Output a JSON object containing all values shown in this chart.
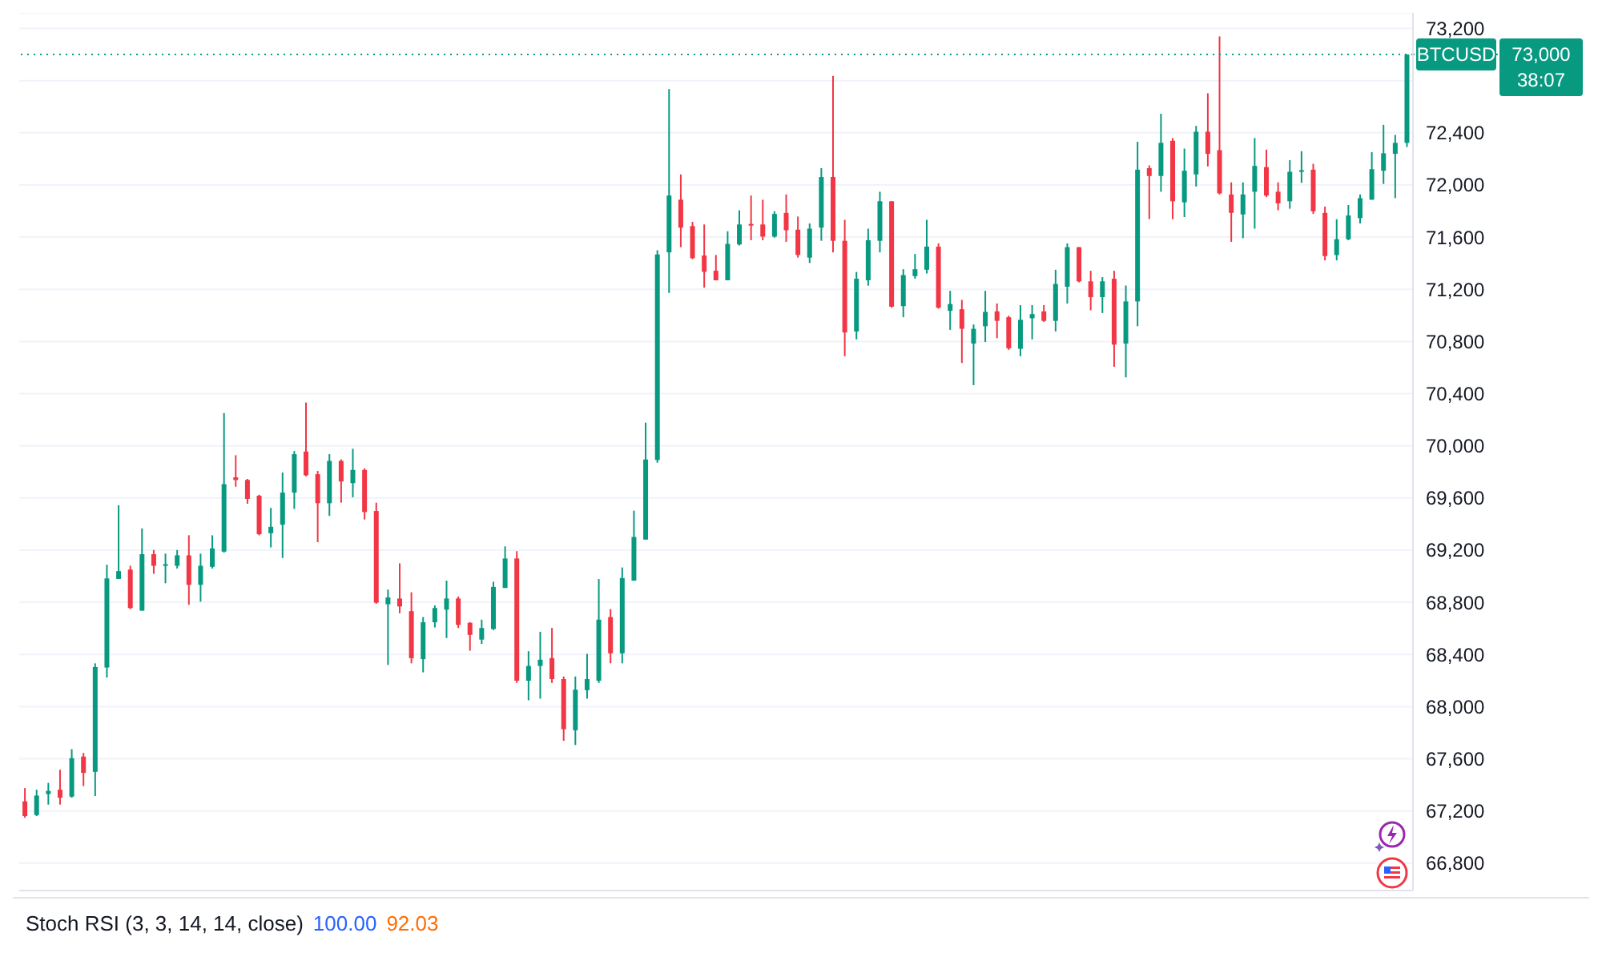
{
  "chart_data": {
    "type": "candlestick",
    "categories": [
      null,
      null,
      null,
      null,
      null,
      null,
      null,
      null,
      null,
      null,
      null,
      null,
      null,
      null,
      null,
      null,
      null,
      null,
      null,
      null,
      null,
      null,
      null,
      null,
      null,
      null,
      null,
      null,
      null,
      null,
      null,
      null,
      null,
      null,
      null,
      null,
      null,
      null,
      null,
      null,
      null,
      null,
      null,
      null,
      null,
      null,
      null,
      null,
      null,
      null,
      null,
      null,
      null,
      null,
      null,
      null,
      null,
      null,
      null,
      null,
      null,
      null,
      null,
      null,
      null,
      null,
      null,
      null,
      null,
      null,
      null,
      null,
      null,
      null,
      null,
      null,
      null,
      null,
      null,
      null,
      null,
      null,
      null,
      null,
      null,
      null,
      null,
      null,
      null,
      null,
      null,
      null,
      null,
      null,
      null,
      null,
      null,
      null,
      null,
      null,
      null,
      null,
      null,
      null,
      null,
      null,
      null,
      null,
      null,
      null,
      null,
      null,
      null,
      null,
      null,
      null,
      null,
      null,
      null
    ],
    "ohlc": [
      [
        67274,
        67375,
        67148,
        67161
      ],
      [
        67169,
        67363,
        67161,
        67318
      ],
      [
        67330,
        67415,
        67249,
        67354
      ],
      [
        67363,
        67516,
        67249,
        67302
      ],
      [
        67310,
        67674,
        67302,
        67605
      ],
      [
        67617,
        67645,
        67391,
        67492
      ],
      [
        67500,
        68332,
        67314,
        68304
      ],
      [
        68300,
        69088,
        68223,
        68983
      ],
      [
        68979,
        69544,
        68979,
        69039
      ],
      [
        69051,
        69080,
        68748,
        68756
      ],
      [
        68736,
        69366,
        68736,
        69169
      ],
      [
        69169,
        69201,
        69019,
        69080
      ],
      [
        69080,
        69173,
        68946,
        69092
      ],
      [
        69080,
        69201,
        69059,
        69160
      ],
      [
        69160,
        69314,
        68781,
        68934
      ],
      [
        68934,
        69173,
        68805,
        69080
      ],
      [
        69072,
        69314,
        69059,
        69213
      ],
      [
        69189,
        70251,
        69181,
        69706
      ],
      [
        69758,
        69928,
        69686,
        69738
      ],
      [
        69738,
        69746,
        69556,
        69593
      ],
      [
        69617,
        69625,
        69314,
        69322
      ],
      [
        69330,
        69524,
        69221,
        69379
      ],
      [
        69395,
        69795,
        69140,
        69641
      ],
      [
        69641,
        69960,
        69516,
        69936
      ],
      [
        69956,
        70332,
        69766,
        69774
      ],
      [
        69782,
        69807,
        69261,
        69560
      ],
      [
        69560,
        69936,
        69463,
        69884
      ],
      [
        69884,
        69896,
        69564,
        69726
      ],
      [
        69714,
        69977,
        69605,
        69815
      ],
      [
        69815,
        69827,
        69435,
        69492
      ],
      [
        69500,
        69564,
        68789,
        68797
      ],
      [
        68785,
        68898,
        68320,
        68837
      ],
      [
        68829,
        69099,
        68716,
        68768
      ],
      [
        68732,
        68877,
        68332,
        68372
      ],
      [
        68364,
        68687,
        68263,
        68647
      ],
      [
        68647,
        68776,
        68607,
        68756
      ],
      [
        68744,
        68966,
        68526,
        68829
      ],
      [
        68829,
        68845,
        68603,
        68627
      ],
      [
        68643,
        68647,
        68429,
        68550
      ],
      [
        68514,
        68667,
        68481,
        68603
      ],
      [
        68595,
        68958,
        68587,
        68918
      ],
      [
        68910,
        69229,
        68910,
        69136
      ],
      [
        69136,
        69192,
        68182,
        68199
      ],
      [
        68199,
        68425,
        68049,
        68312
      ],
      [
        68312,
        68574,
        68061,
        68360
      ],
      [
        68372,
        68603,
        68182,
        68211
      ],
      [
        68211,
        68231,
        67738,
        67827
      ],
      [
        67819,
        68231,
        67706,
        68130
      ],
      [
        68126,
        68405,
        68061,
        68211
      ],
      [
        68199,
        68978,
        68182,
        68667
      ],
      [
        68687,
        68748,
        68332,
        68409
      ],
      [
        68409,
        69067,
        68332,
        68986
      ],
      [
        68966,
        69503,
        68966,
        69301
      ],
      [
        69281,
        70178,
        69281,
        69895
      ],
      [
        69891,
        71500,
        69870,
        71467
      ],
      [
        71483,
        72735,
        71172,
        71919
      ],
      [
        71887,
        72081,
        71523,
        71673
      ],
      [
        71685,
        71717,
        71431,
        71439
      ],
      [
        71459,
        71697,
        71212,
        71334
      ],
      [
        71342,
        71463,
        71269,
        71269
      ],
      [
        71269,
        71645,
        71269,
        71548
      ],
      [
        71544,
        71806,
        71536,
        71697
      ],
      [
        71701,
        71919,
        71576,
        71689
      ],
      [
        71697,
        71887,
        71576,
        71604
      ],
      [
        71604,
        71798,
        71596,
        71778
      ],
      [
        71786,
        71927,
        71564,
        71653
      ],
      [
        71657,
        71758,
        71443,
        71463
      ],
      [
        71443,
        71705,
        71402,
        71665
      ],
      [
        71673,
        72129,
        71572,
        72061
      ],
      [
        72061,
        72836,
        71483,
        71572
      ],
      [
        71572,
        71733,
        70687,
        70869
      ],
      [
        70877,
        71333,
        70816,
        71281
      ],
      [
        71269,
        71665,
        71228,
        71576
      ],
      [
        71572,
        71948,
        71483,
        71875
      ],
      [
        71875,
        71875,
        71059,
        71067
      ],
      [
        71071,
        71354,
        70986,
        71309
      ],
      [
        71301,
        71471,
        71281,
        71354
      ],
      [
        71350,
        71733,
        71321,
        71527
      ],
      [
        71527,
        71552,
        71051,
        71059
      ],
      [
        71035,
        71188,
        70889,
        71087
      ],
      [
        71047,
        71119,
        70635,
        70897
      ],
      [
        70784,
        70930,
        70465,
        70897
      ],
      [
        70917,
        71188,
        70796,
        71027
      ],
      [
        71031,
        71091,
        70825,
        70958
      ],
      [
        70986,
        70998,
        70736,
        70748
      ],
      [
        70744,
        71079,
        70687,
        70966
      ],
      [
        70978,
        71079,
        70816,
        71010
      ],
      [
        71031,
        71079,
        70950,
        70958
      ],
      [
        70958,
        71350,
        70877,
        71241
      ],
      [
        71220,
        71552,
        71091,
        71523
      ],
      [
        71523,
        71523,
        71253,
        71261
      ],
      [
        71261,
        71342,
        71039,
        71140
      ],
      [
        71140,
        71293,
        71018,
        71261
      ],
      [
        71281,
        71342,
        70606,
        70776
      ],
      [
        70784,
        71229,
        70525,
        71107
      ],
      [
        71107,
        72331,
        70917,
        72117
      ],
      [
        72129,
        72150,
        71738,
        72069
      ],
      [
        72069,
        72546,
        71948,
        72323
      ],
      [
        72339,
        72360,
        71737,
        71875
      ],
      [
        71867,
        72279,
        71754,
        72109
      ],
      [
        72081,
        72453,
        71988,
        72408
      ],
      [
        72408,
        72703,
        72142,
        72239
      ],
      [
        72267,
        73139,
        71927,
        71936
      ],
      [
        71927,
        72020,
        71564,
        71786
      ],
      [
        71774,
        72020,
        71592,
        71927
      ],
      [
        71948,
        72360,
        71665,
        72146
      ],
      [
        72137,
        72271,
        71907,
        71919
      ],
      [
        71948,
        72020,
        71806,
        71859
      ],
      [
        71875,
        72190,
        71818,
        72101
      ],
      [
        72101,
        72259,
        72016,
        72113
      ],
      [
        72117,
        72162,
        71778,
        71798
      ],
      [
        71786,
        71834,
        71422,
        71455
      ],
      [
        71463,
        71737,
        71422,
        71584
      ],
      [
        71584,
        71846,
        71576,
        71766
      ],
      [
        71746,
        71927,
        71705,
        71899
      ],
      [
        71887,
        72251,
        71887,
        72121
      ],
      [
        72109,
        72461,
        72008,
        72243
      ],
      [
        72239,
        72384,
        71899,
        72323
      ],
      [
        72323,
        73000,
        72291,
        73000
      ]
    ],
    "colors": [
      "#f23645",
      "#089981",
      "#089981",
      "#f23645",
      "#089981",
      "#f23645",
      "#089981",
      "#089981",
      "#089981",
      "#f23645",
      "#089981",
      "#f23645",
      "#089981",
      "#089981",
      "#f23645",
      "#089981",
      "#089981",
      "#089981",
      "#f23645",
      "#f23645",
      "#f23645",
      "#089981",
      "#089981",
      "#089981",
      "#f23645",
      "#f23645",
      "#089981",
      "#f23645",
      "#089981",
      "#f23645",
      "#f23645",
      "#089981",
      "#f23645",
      "#f23645",
      "#089981",
      "#089981",
      "#089981",
      "#f23645",
      "#f23645",
      "#089981",
      "#089981",
      "#089981",
      "#f23645",
      "#089981",
      "#089981",
      "#f23645",
      "#f23645",
      "#089981",
      "#089981",
      "#089981",
      "#f23645",
      "#089981",
      "#089981",
      "#089981",
      "#089981",
      "#089981",
      "#f23645",
      "#f23645",
      "#f23645",
      "#f23645",
      "#089981",
      "#089981",
      "#f23645",
      "#f23645",
      "#089981",
      "#f23645",
      "#f23645",
      "#089981",
      "#089981",
      "#f23645",
      "#f23645",
      "#089981",
      "#089981",
      "#089981",
      "#f23645",
      "#089981",
      "#089981",
      "#089981",
      "#f23645",
      "#089981",
      "#f23645",
      "#089981",
      "#089981",
      "#f23645",
      "#f23645",
      "#089981",
      "#089981",
      "#f23645",
      "#089981",
      "#089981",
      "#f23645",
      "#f23645",
      "#089981",
      "#f23645",
      "#089981",
      "#089981",
      "#f23645",
      "#089981",
      "#f23645",
      "#089981",
      "#089981",
      "#f23645",
      "#f23645",
      "#f23645",
      "#089981",
      "#089981",
      "#f23645",
      "#f23645",
      "#089981",
      "#089981",
      "#f23645",
      "#f23645",
      "#089981",
      "#089981",
      "#089981",
      "#089981",
      "#089981",
      "#089981",
      "#089981"
    ],
    "ylim": [
      66590,
      73320
    ],
    "yticks": [
      {
        "value": 66800,
        "label": "66,800"
      },
      {
        "value": 67200,
        "label": "67,200"
      },
      {
        "value": 67600,
        "label": "67,600"
      },
      {
        "value": 68000,
        "label": "68,000"
      },
      {
        "value": 68400,
        "label": "68,400"
      },
      {
        "value": 68800,
        "label": "68,800"
      },
      {
        "value": 69200,
        "label": "69,200"
      },
      {
        "value": 69600,
        "label": "69,600"
      },
      {
        "value": 70000,
        "label": "70,000"
      },
      {
        "value": 70400,
        "label": "70,400"
      },
      {
        "value": 70800,
        "label": "70,800"
      },
      {
        "value": 71200,
        "label": "71,200"
      },
      {
        "value": 71600,
        "label": "71,600"
      },
      {
        "value": 72000,
        "label": "72,000"
      },
      {
        "value": 72400,
        "label": "72,400"
      },
      {
        "value": 72800,
        "label": null
      },
      {
        "value": 73200,
        "label": "73,200"
      }
    ],
    "tick_labels": "y",
    "grid": "y",
    "ref_lines": [
      {
        "axis": "y",
        "value": 73000,
        "label": "73,000",
        "color": "#089981",
        "line_style": "dotted"
      }
    ],
    "annotations": [
      "BTCUSD",
      "38:07",
      "Stoch RSI (3, 3, 14, 14, close)",
      "100.00",
      "92.03"
    ]
  }
}
